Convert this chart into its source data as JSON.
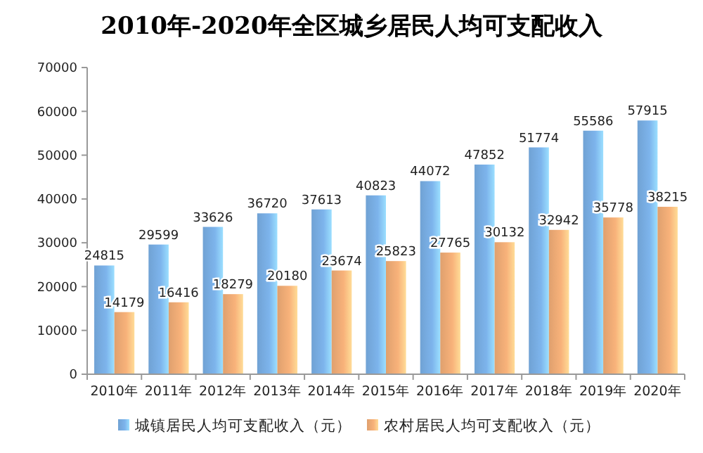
{
  "chart_data": {
    "type": "bar",
    "title": "2010年-2020年全区城乡居民人均可支配收入",
    "categories": [
      "2010年",
      "2011年",
      "2012年",
      "2013年",
      "2014年",
      "2015年",
      "2016年",
      "2017年",
      "2018年",
      "2019年",
      "2020年"
    ],
    "series": [
      {
        "name": "城镇居民人均可支配收入（元）",
        "color": "#7db4ec",
        "values": [
          24815,
          29599,
          33626,
          36720,
          37613,
          40823,
          44072,
          47852,
          51774,
          55586,
          57915
        ]
      },
      {
        "name": "农村居民人均可支配收入（元）",
        "color": "#f8b27a",
        "values": [
          14179,
          16416,
          18279,
          20180,
          23674,
          25823,
          27765,
          30132,
          32942,
          35778,
          38215
        ]
      }
    ],
    "ylim": [
      0,
      70000
    ],
    "yticks": [
      0,
      10000,
      20000,
      30000,
      40000,
      50000,
      60000,
      70000
    ],
    "data_labels": true,
    "legend": "bottom"
  }
}
